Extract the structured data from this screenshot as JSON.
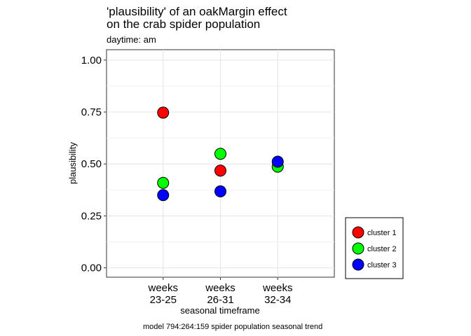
{
  "chart_data": {
    "type": "scatter",
    "title_lines": [
      "'plausibility' of an oakMargin effect",
      "on the crab spider population"
    ],
    "subtitle": "daytime: am",
    "xlabel": "seasonal timeframe",
    "ylabel": "plausibility",
    "caption": "model 794:264:159 spider population seasonal trend",
    "categories": [
      {
        "line1": "weeks",
        "line2": "23-25"
      },
      {
        "line1": "weeks",
        "line2": "26-31"
      },
      {
        "line1": "weeks",
        "line2": "32-34"
      }
    ],
    "ylim": [
      -0.045,
      1.05
    ],
    "yticks": [
      0.0,
      0.25,
      0.5,
      0.75,
      1.0
    ],
    "ytick_labels": [
      "0.00",
      "0.25",
      "0.50",
      "0.75",
      "1.00"
    ],
    "grid": true,
    "legend_position": "bottom-right",
    "series": [
      {
        "name": "cluster 1",
        "color": "#ff0000",
        "values": [
          0.747,
          0.468,
          null
        ]
      },
      {
        "name": "cluster 2",
        "color": "#00ff00",
        "values": [
          0.409,
          0.549,
          0.487
        ]
      },
      {
        "name": "cluster 3",
        "color": "#0000ff",
        "values": [
          0.35,
          0.368,
          0.511
        ]
      }
    ]
  }
}
